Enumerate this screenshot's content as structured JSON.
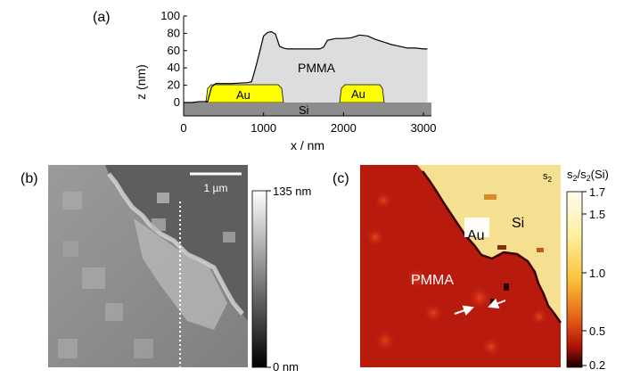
{
  "panel_labels": {
    "a": "(a)",
    "b": "(b)",
    "c": "(c)"
  },
  "profile": {
    "ylabel": "z (nm)",
    "xlabel": "x / nm",
    "x_ticks": [
      "0",
      "1000",
      "2000",
      "3000"
    ],
    "y_ticks": [
      "0",
      "20",
      "40",
      "60",
      "80",
      "100"
    ],
    "region_labels": {
      "pmma": "PMMA",
      "au_left": "Au",
      "au_right": "Au",
      "si": "Si"
    },
    "colors": {
      "pmma": "#dddddd",
      "au": "#ffff00",
      "si": "#8c8c8c"
    }
  },
  "chart_data": {
    "type": "line",
    "xlabel": "x / nm",
    "ylabel": "z (nm)",
    "xlim": [
      0,
      3100
    ],
    "ylim": [
      0,
      100
    ],
    "x": [
      0,
      100,
      200,
      300,
      350,
      400,
      600,
      800,
      850,
      900,
      950,
      1000,
      1050,
      1100,
      1150,
      1200,
      1250,
      1300,
      1400,
      1500,
      1600,
      1700,
      1750,
      1800,
      1900,
      2000,
      2100,
      2200,
      2300,
      2400,
      2500,
      2600,
      2700,
      2800,
      2900,
      3000,
      3050
    ],
    "y": [
      0,
      0,
      1,
      1,
      18,
      22,
      22,
      23,
      24,
      40,
      58,
      77,
      81,
      82,
      79,
      65,
      63,
      62,
      62,
      62,
      62,
      62,
      64,
      72,
      74,
      74,
      75,
      78,
      77,
      73,
      70,
      67,
      65,
      63,
      63,
      62,
      62
    ],
    "gold_regions_x": [
      [
        300,
        1250
      ],
      [
        1950,
        2500
      ]
    ]
  },
  "topography": {
    "scale_bar_label": "1 µm",
    "colorbar_max": "135 nm",
    "colorbar_min": "0 nm"
  },
  "near_field": {
    "signal_label": "s2",
    "colorbar_title": "s2/s2(Si)",
    "colorbar_ticks": [
      "1.7",
      "1.5",
      "1.0",
      "0.5",
      "0.2"
    ],
    "labels": {
      "au": "Au",
      "si": "Si",
      "pmma": "PMMA"
    }
  }
}
